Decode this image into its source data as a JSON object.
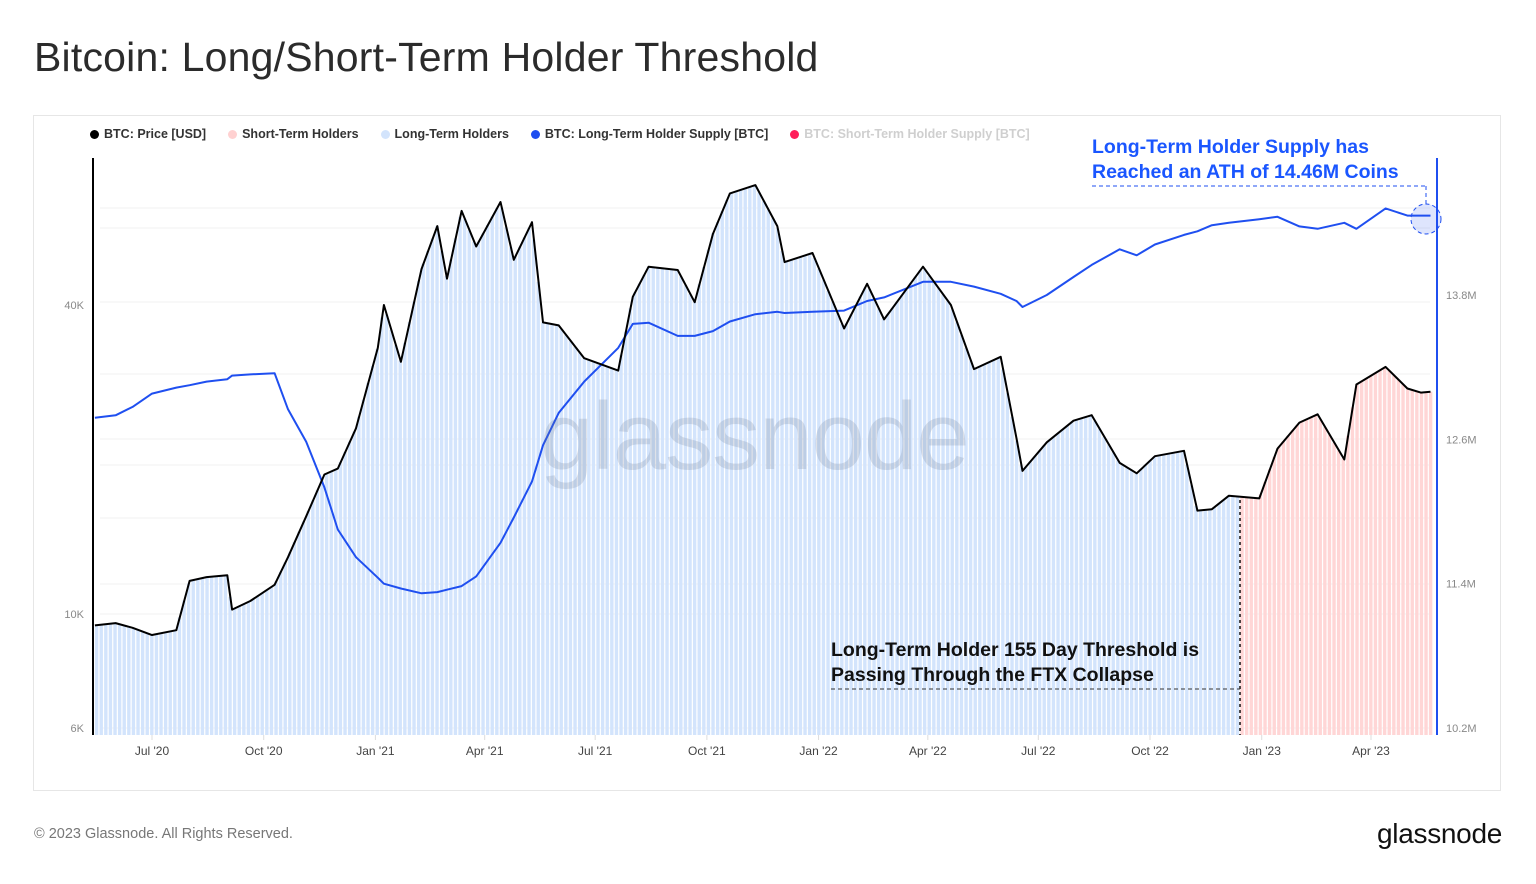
{
  "title": "Bitcoin: Long/Short-Term Holder Threshold",
  "footer": {
    "copyright": "© 2023 Glassnode. All Rights Reserved.",
    "logo": "glassnode"
  },
  "watermark": "glassnode",
  "legend": [
    {
      "label": "BTC: Price [USD]",
      "color": "#000000",
      "muted": false
    },
    {
      "label": "Short-Term Holders",
      "color": "#ffd1d1",
      "muted": false
    },
    {
      "label": "Long-Term Holders",
      "color": "#d3e4fc",
      "muted": false
    },
    {
      "label": "BTC: Long-Term Holder Supply [BTC]",
      "color": "#1f4ff0",
      "muted": false
    },
    {
      "label": "BTC: Short-Term Holder Supply [BTC]",
      "color": "#ff1f5a",
      "muted": true
    }
  ],
  "annotations": {
    "ath": {
      "line1": "Long-Term Holder Supply has",
      "line2": "Reached an ATH of 14.46M Coins"
    },
    "threshold": {
      "line1": "Long-Term Holder 155 Day Threshold is",
      "line2": "Passing Through the FTX Collapse"
    }
  },
  "chart_data": {
    "type": "line",
    "title": "Bitcoin: Long/Short-Term Holder Threshold",
    "xlabel": "",
    "ylabel_left": "BTC: Price [USD] (log)",
    "ylabel_right": "BTC: Long-Term Holder Supply [BTC]",
    "x_ticks": [
      "Jul '20",
      "Oct '20",
      "Jan '21",
      "Apr '21",
      "Jul '21",
      "Oct '21",
      "Jan '22",
      "Apr '22",
      "Jul '22",
      "Oct '22",
      "Jan '23",
      "Apr '23"
    ],
    "y_left_ticks": [
      "6K",
      "10K",
      "40K"
    ],
    "y_left_scale": "log",
    "y_left_range": [
      6000,
      72000
    ],
    "y_right_ticks": [
      "10.2M",
      "11.4M",
      "12.6M",
      "13.8M"
    ],
    "y_right_range": [
      10.2,
      14.6
    ],
    "grid": true,
    "legend_position": "top",
    "threshold_date": "Dec '22",
    "shaded_regions": [
      {
        "name": "Long-Term Holders",
        "from": "May '20",
        "to": "Dec '22",
        "color": "#d3e4fc"
      },
      {
        "name": "Short-Term Holders",
        "from": "Dec '22",
        "to": "May '23",
        "color": "#ffd1d1"
      }
    ],
    "x": [
      "2020-05-15",
      "2020-06-01",
      "2020-06-15",
      "2020-07-01",
      "2020-07-21",
      "2020-08-01",
      "2020-08-15",
      "2020-09-01",
      "2020-09-05",
      "2020-09-20",
      "2020-10-10",
      "2020-10-21",
      "2020-11-05",
      "2020-11-20",
      "2020-12-01",
      "2020-12-16",
      "2021-01-03",
      "2021-01-08",
      "2021-01-22",
      "2021-02-08",
      "2021-02-21",
      "2021-03-01",
      "2021-03-13",
      "2021-03-25",
      "2021-04-14",
      "2021-04-25",
      "2021-05-10",
      "2021-05-19",
      "2021-06-01",
      "2021-06-22",
      "2021-07-20",
      "2021-08-01",
      "2021-08-14",
      "2021-09-07",
      "2021-09-21",
      "2021-10-06",
      "2021-10-20",
      "2021-11-10",
      "2021-11-28",
      "2021-12-04",
      "2021-12-27",
      "2022-01-22",
      "2022-02-10",
      "2022-02-24",
      "2022-03-28",
      "2022-04-20",
      "2022-05-09",
      "2022-05-31",
      "2022-06-13",
      "2022-06-18",
      "2022-07-08",
      "2022-07-30",
      "2022-08-14",
      "2022-09-06",
      "2022-09-20",
      "2022-10-05",
      "2022-10-29",
      "2022-11-09",
      "2022-11-21",
      "2022-12-05",
      "2022-12-30",
      "2023-01-14",
      "2023-02-01",
      "2023-02-16",
      "2023-03-10",
      "2023-03-20",
      "2023-04-13",
      "2023-05-01",
      "2023-05-12",
      "2023-05-20"
    ],
    "series": [
      {
        "name": "BTC: Price [USD]",
        "axis": "left",
        "color": "#000000",
        "values": [
          9500,
          9600,
          9400,
          9100,
          9300,
          11600,
          11800,
          11900,
          10200,
          10600,
          11400,
          12900,
          15500,
          18700,
          19200,
          23000,
          33000,
          40000,
          31000,
          47000,
          57000,
          45000,
          61000,
          52000,
          63500,
          49000,
          58000,
          37000,
          36500,
          31500,
          29800,
          41500,
          47500,
          46800,
          40500,
          55000,
          66000,
          68500,
          57000,
          48500,
          50500,
          36000,
          44000,
          37500,
          47500,
          40000,
          30000,
          31700,
          22000,
          19000,
          21600,
          23800,
          24400,
          19700,
          18800,
          20300,
          20800,
          15900,
          16000,
          17000,
          16800,
          21000,
          23600,
          24500,
          20000,
          28000,
          30300,
          27500,
          27000,
          27100
        ]
      },
      {
        "name": "BTC: Long-Term Holder Supply [BTC]",
        "axis": "right",
        "unit": "M BTC",
        "color": "#1f4ff0",
        "values": [
          12.78,
          12.8,
          12.87,
          12.98,
          13.03,
          13.05,
          13.08,
          13.1,
          13.13,
          13.14,
          13.15,
          12.85,
          12.58,
          12.2,
          11.85,
          11.62,
          11.45,
          11.4,
          11.36,
          11.32,
          11.33,
          11.35,
          11.38,
          11.46,
          11.74,
          11.95,
          12.25,
          12.55,
          12.82,
          13.08,
          13.36,
          13.56,
          13.57,
          13.46,
          13.46,
          13.5,
          13.58,
          13.64,
          13.66,
          13.65,
          13.66,
          13.67,
          13.75,
          13.78,
          13.91,
          13.91,
          13.87,
          13.81,
          13.75,
          13.7,
          13.8,
          13.95,
          14.05,
          14.18,
          14.13,
          14.22,
          14.3,
          14.33,
          14.38,
          14.4,
          14.43,
          14.45,
          14.37,
          14.35,
          14.4,
          14.35,
          14.52,
          14.46,
          14.46,
          14.46
        ]
      }
    ],
    "ath_value": "14.46M"
  }
}
